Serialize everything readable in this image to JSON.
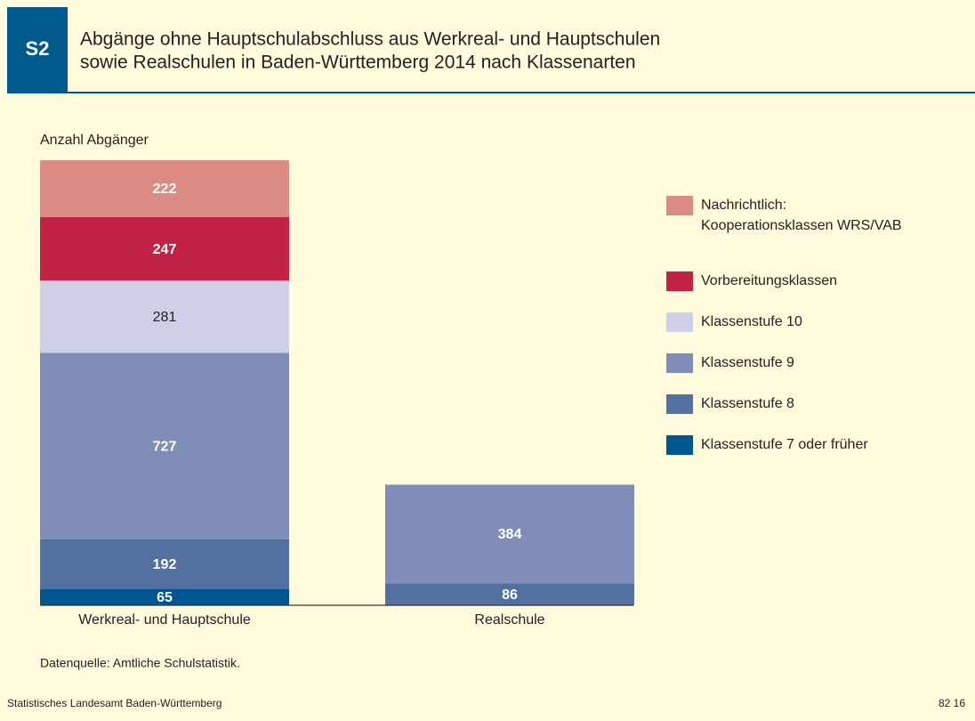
{
  "header": {
    "badge": "S2",
    "title_lines": [
      "Abgänge ohne Hauptschulabschluss aus Werkreal- und Hauptschulen",
      "sowie Realschulen in Baden-Württemberg 2014 nach Klassenarten"
    ]
  },
  "chart_data": {
    "type": "stacked_bar",
    "y_label": "Anzahl Abgänger",
    "categories": [
      "Werkreal- und Hauptschule",
      "Realschule"
    ],
    "series": [
      {
        "name": "Klassenstufe 7 oder früher",
        "color": "#00568e",
        "values": [
          65,
          null
        ]
      },
      {
        "name": "Klassenstufe 8",
        "color": "#5470a0",
        "values": [
          192,
          86
        ]
      },
      {
        "name": "Klassenstufe 9",
        "color": "#7f8db7",
        "values": [
          727,
          384
        ]
      },
      {
        "name": "Klassenstufe 10",
        "color": "#cdd0e6",
        "values": [
          281,
          null
        ]
      },
      {
        "name": "Vorbereitungsklassen",
        "color": "#c22245",
        "values": [
          247,
          null
        ]
      },
      {
        "name": "Nachrichtlich:\nKooperationsklassen WRS/VAB",
        "color": "#dc8a84",
        "values": [
          222,
          null
        ]
      }
    ],
    "source": "Datenquelle: Amtliche Schulstatistik."
  },
  "footer": {
    "left": "Statistisches Landesamt Baden-Württemberg",
    "right": "82 16"
  }
}
